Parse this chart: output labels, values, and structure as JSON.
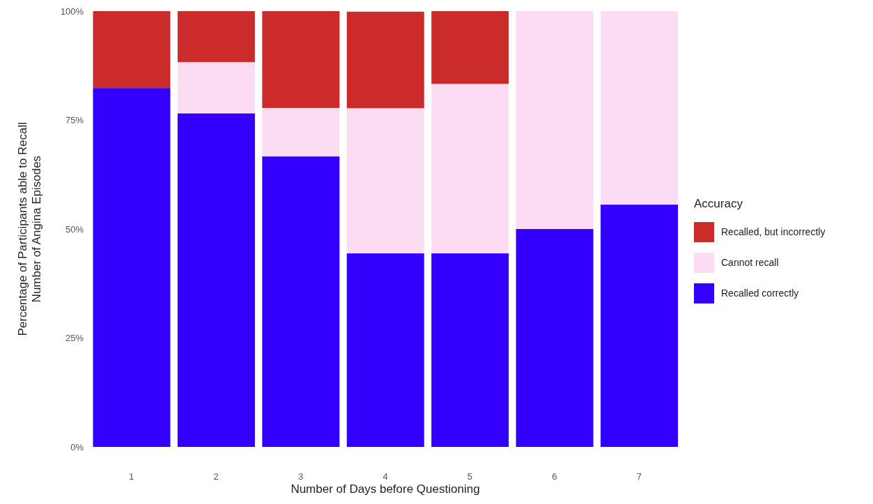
{
  "chart_data": {
    "type": "bar",
    "stacked": true,
    "xlabel": "Number of Days before Questioning",
    "ylabel": "Percentage of Participants able to Recall\nNumber of Angina Episodes",
    "legend_title": "Accuracy",
    "legend": "right",
    "grid": false,
    "categories": [
      "1",
      "2",
      "3",
      "4",
      "5",
      "6",
      "7"
    ],
    "ylim": [
      0,
      100
    ],
    "yticks": [
      {
        "value": 0,
        "label": "0%"
      },
      {
        "value": 25,
        "label": "25%"
      },
      {
        "value": 50,
        "label": "50%"
      },
      {
        "value": 75,
        "label": "75%"
      },
      {
        "value": 100,
        "label": "100%"
      }
    ],
    "series": [
      {
        "name": "Recalled correctly",
        "color": "#3300ff",
        "values": [
          82.4,
          76.5,
          66.7,
          44.4,
          44.4,
          50,
          55.6
        ]
      },
      {
        "name": "Cannot recall",
        "color": "#fcdcf2",
        "values": [
          0,
          11.8,
          11.1,
          33.3,
          38.9,
          50,
          44.4
        ]
      },
      {
        "name": "Recalled, but incorrectly",
        "color": "#cc2b2b",
        "values": [
          17.6,
          11.8,
          22.2,
          22.2,
          16.7,
          0,
          0
        ]
      }
    ]
  }
}
